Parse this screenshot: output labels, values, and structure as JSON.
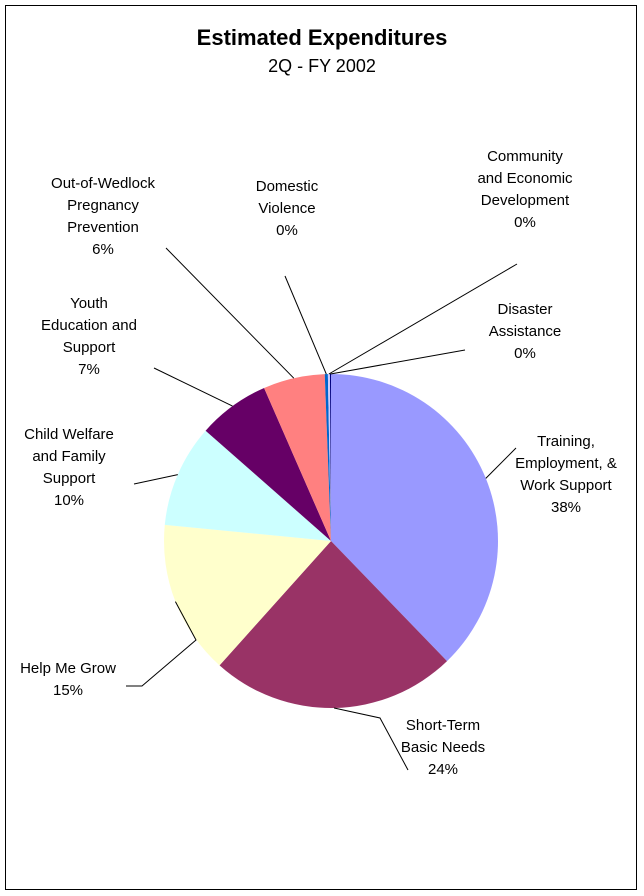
{
  "chart_data": {
    "type": "pie",
    "title": "Estimated Expenditures",
    "subtitle": "2Q - FY 2002",
    "slices": [
      {
        "label_lines": [
          "Training,",
          "Employment, &",
          "Work Support"
        ],
        "value": 38,
        "value_label": "38%",
        "color": "#9999ff"
      },
      {
        "label_lines": [
          "Short-Term",
          "Basic Needs"
        ],
        "value": 24,
        "value_label": "24%",
        "color": "#993366"
      },
      {
        "label_lines": [
          "Help Me Grow"
        ],
        "value": 15,
        "value_label": "15%",
        "color": "#ffffcc"
      },
      {
        "label_lines": [
          "Child Welfare",
          "and Family",
          "Support"
        ],
        "value": 10,
        "value_label": "10%",
        "color": "#ccffff"
      },
      {
        "label_lines": [
          "Youth",
          "Education and",
          "Support"
        ],
        "value": 7,
        "value_label": "7%",
        "color": "#660066"
      },
      {
        "label_lines": [
          "Out-of-Wedlock",
          "Pregnancy",
          "Prevention"
        ],
        "value": 6,
        "value_label": "6%",
        "color": "#ff8080"
      },
      {
        "label_lines": [
          "Domestic",
          "Violence"
        ],
        "value": 0.3,
        "value_label": "0%",
        "color": "#0066cc"
      },
      {
        "label_lines": [
          "Community",
          "and Economic",
          "Development"
        ],
        "value": 0.2,
        "value_label": "0%",
        "color": "#ccccff"
      },
      {
        "label_lines": [
          "Disaster",
          "Assistance"
        ],
        "value": 0.1,
        "value_label": "0%",
        "color": "#000080"
      }
    ]
  }
}
